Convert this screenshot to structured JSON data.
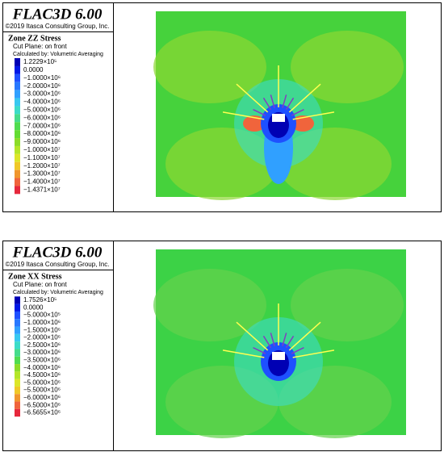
{
  "panels": [
    {
      "title": "FLAC3D 6.00",
      "copyright": "©2019 Itasca Consulting Group, Inc.",
      "quantity": "Zone ZZ Stress",
      "cut_plane": "Cut Plane: on front",
      "averaging": "Calculated by: Volumetric Averaging",
      "legend": [
        {
          "label": "1.2229×10⁵",
          "color": "#0000b4"
        },
        {
          "label": "0.0000",
          "color": "#0018e6"
        },
        {
          "label": "−1.0000×10⁶",
          "color": "#1e50ff"
        },
        {
          "label": "−2.0000×10⁶",
          "color": "#2878ff"
        },
        {
          "label": "−3.0000×10⁶",
          "color": "#30a0ff"
        },
        {
          "label": "−4.0000×10⁶",
          "color": "#38c8f0"
        },
        {
          "label": "−5.0000×10⁶",
          "color": "#3cdcc8"
        },
        {
          "label": "−6.0000×10⁶",
          "color": "#46dc8c"
        },
        {
          "label": "−7.0000×10⁶",
          "color": "#50dc50"
        },
        {
          "label": "−8.0000×10⁶",
          "color": "#64dc32"
        },
        {
          "label": "−9.0000×10⁶",
          "color": "#8cdc28"
        },
        {
          "label": "−1.0000×10⁷",
          "color": "#b4e628"
        },
        {
          "label": "−1.1000×10⁷",
          "color": "#dce628"
        },
        {
          "label": "−1.2000×10⁷",
          "color": "#f0c828"
        },
        {
          "label": "−1.3000×10⁷",
          "color": "#f0962d"
        },
        {
          "label": "−1.4000×10⁷",
          "color": "#f0643c"
        },
        {
          "label": "−1.4371×10⁷",
          "color": "#e6283c"
        }
      ]
    },
    {
      "title": "FLAC3D 6.00",
      "copyright": "©2019 Itasca Consulting Group, Inc.",
      "quantity": "Zone XX Stress",
      "cut_plane": "Cut Plane: on front",
      "averaging": "Calculated by: Volumetric Averaging",
      "legend": [
        {
          "label": "1.7526×10⁵",
          "color": "#0000b4"
        },
        {
          "label": "0.0000",
          "color": "#0018e6"
        },
        {
          "label": "−5.0000×10⁵",
          "color": "#1e50ff"
        },
        {
          "label": "−1.0000×10⁶",
          "color": "#2878ff"
        },
        {
          "label": "−1.5000×10⁶",
          "color": "#30a0ff"
        },
        {
          "label": "−2.0000×10⁶",
          "color": "#38c8f0"
        },
        {
          "label": "−2.5000×10⁶",
          "color": "#3cdcc8"
        },
        {
          "label": "−3.0000×10⁶",
          "color": "#46dc8c"
        },
        {
          "label": "−3.5000×10⁶",
          "color": "#50dc50"
        },
        {
          "label": "−4.0000×10⁶",
          "color": "#8cdc28"
        },
        {
          "label": "−4.5000×10⁶",
          "color": "#b4e628"
        },
        {
          "label": "−5.0000×10⁶",
          "color": "#dce628"
        },
        {
          "label": "−5.5000×10⁶",
          "color": "#f0c828"
        },
        {
          "label": "−6.0000×10⁶",
          "color": "#f0962d"
        },
        {
          "label": "−6.5000×10⁶",
          "color": "#f0643c"
        },
        {
          "label": "−6.5655×10⁶",
          "color": "#e6283c"
        }
      ]
    }
  ]
}
